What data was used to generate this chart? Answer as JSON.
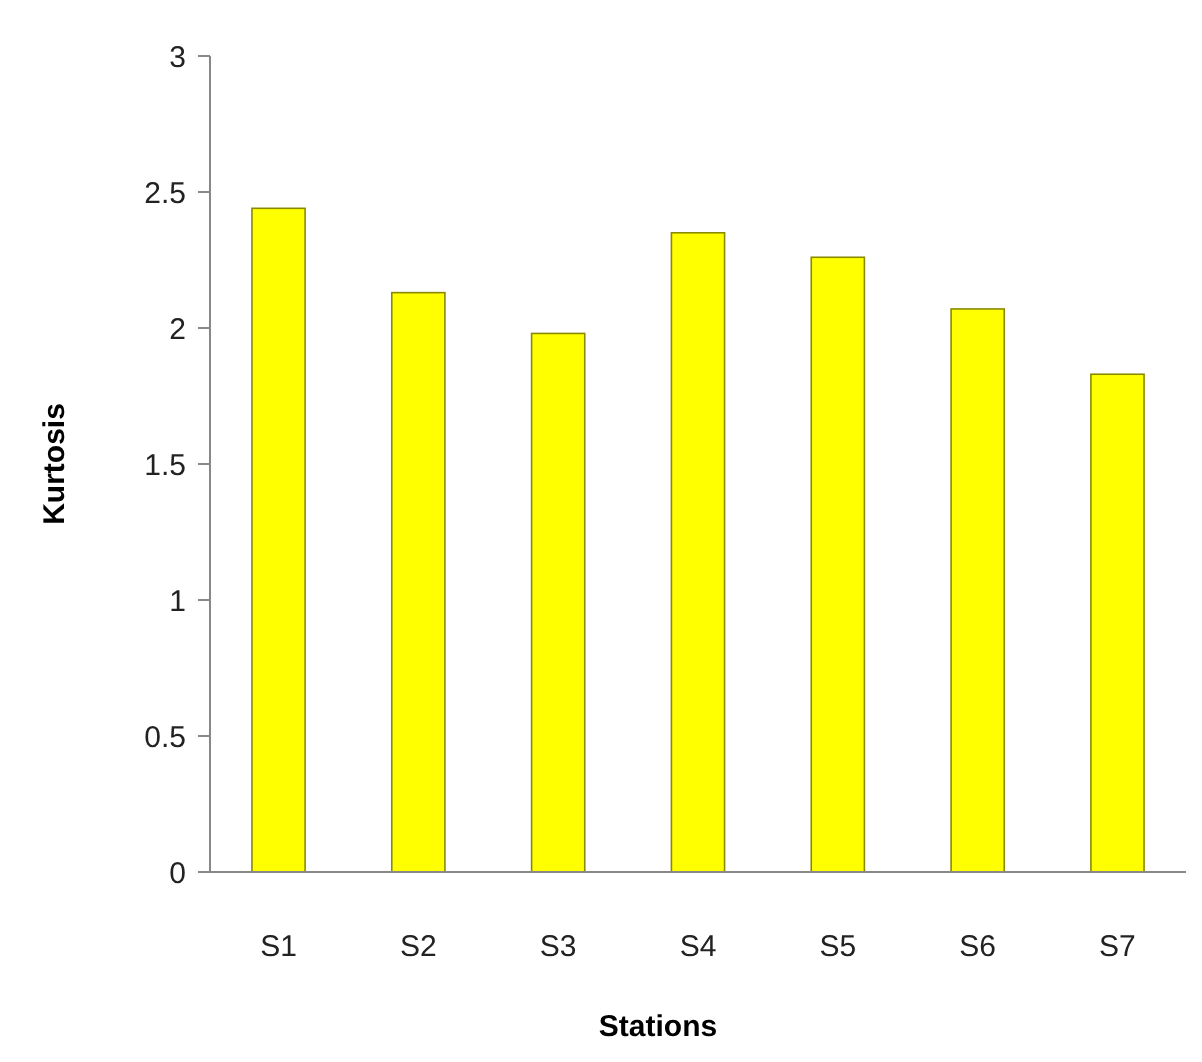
{
  "chart_data": {
    "type": "bar",
    "xlabel": "Stations",
    "ylabel": "Kurtosis",
    "categories": [
      "S1",
      "S2",
      "S3",
      "S4",
      "S5",
      "S6",
      "S7"
    ],
    "values": [
      2.44,
      2.13,
      1.98,
      2.35,
      2.26,
      2.07,
      1.83
    ],
    "color": "#ffff00",
    "ylim": [
      0,
      3
    ],
    "yticks": [
      0,
      0.5,
      1,
      1.5,
      2,
      2.5,
      3
    ],
    "grid": false
  }
}
